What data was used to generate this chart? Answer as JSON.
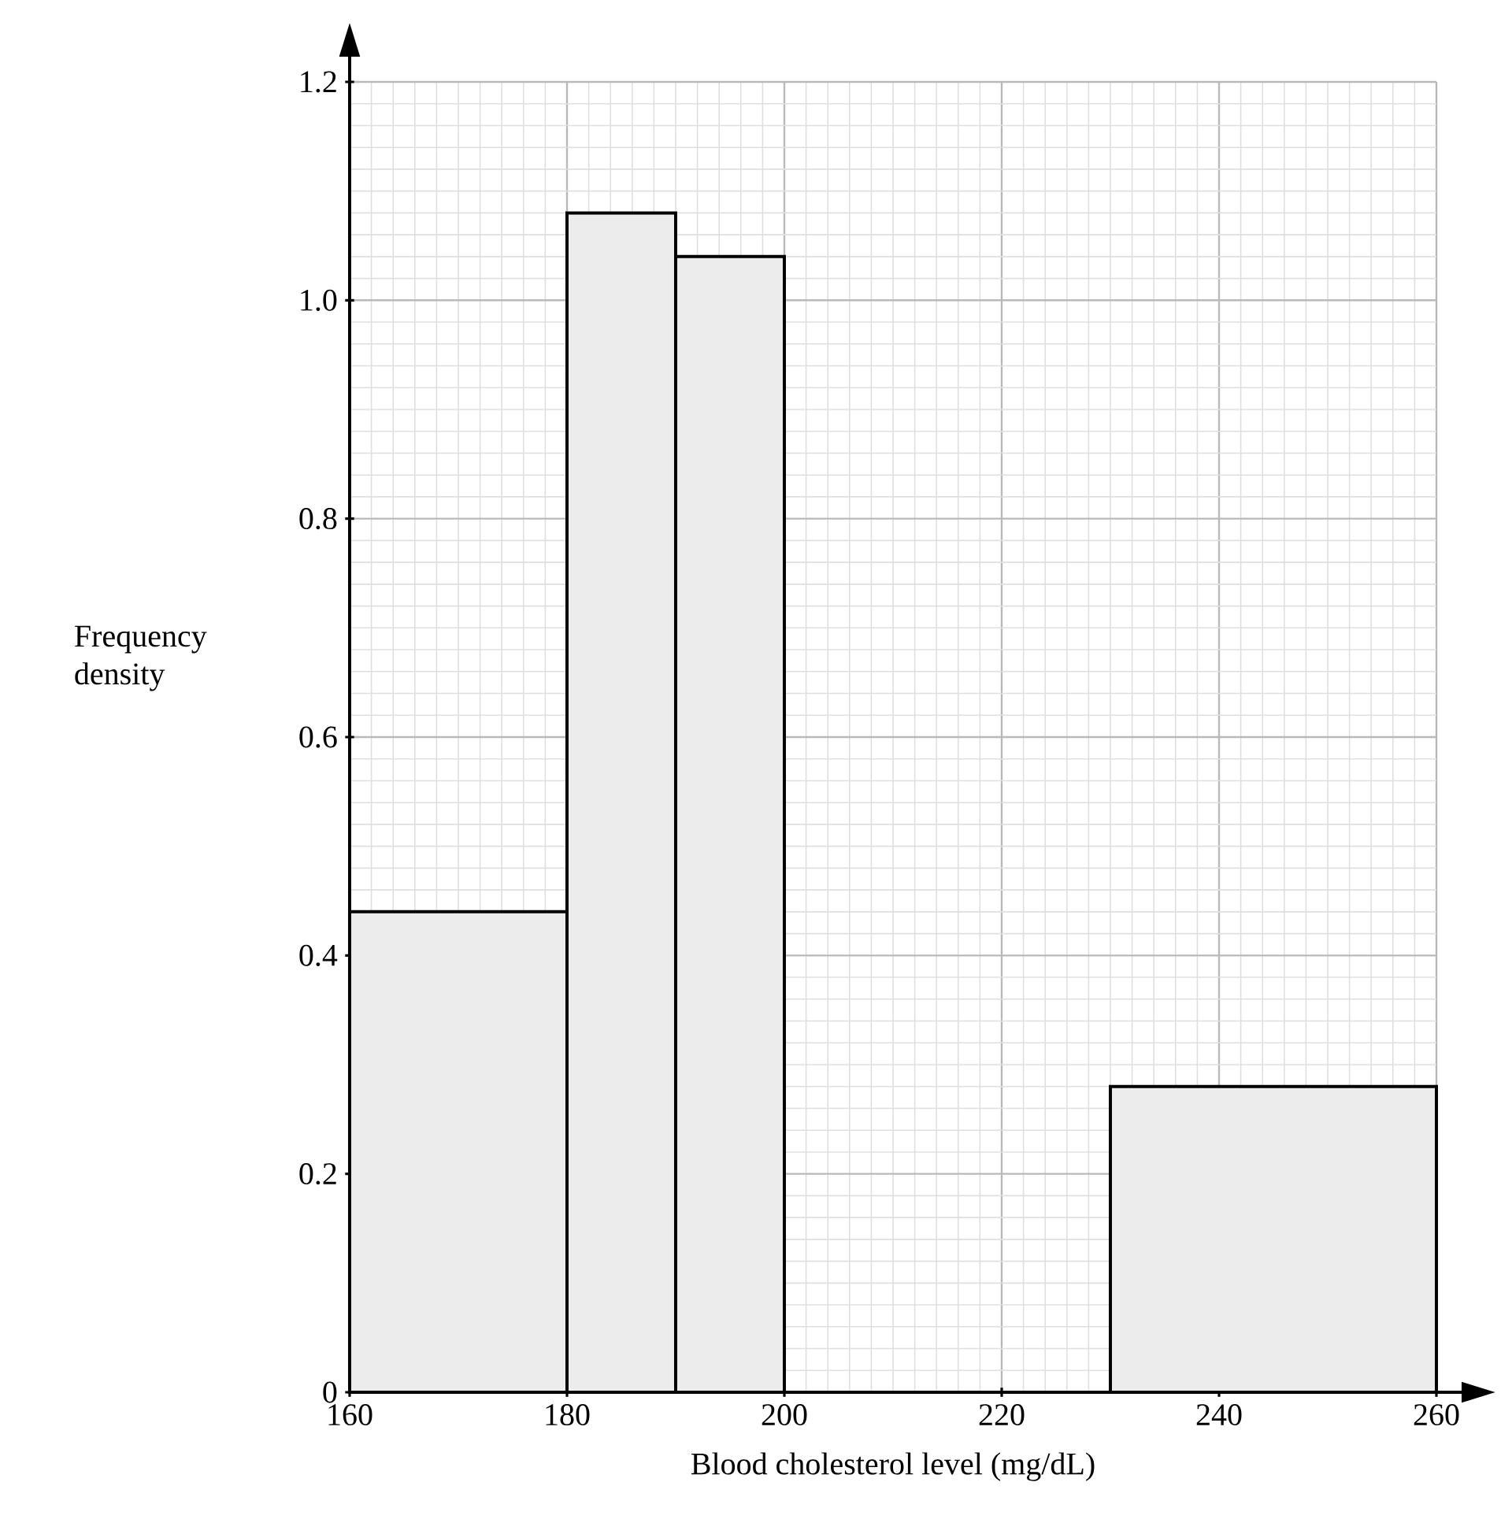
{
  "chart_data": {
    "type": "histogram",
    "xlabel": "Blood cholesterol level (mg/dL)",
    "ylabel": "Frequency density",
    "bins": [
      160,
      180,
      190,
      200,
      230,
      260
    ],
    "values": [
      0.44,
      1.08,
      1.04,
      null,
      0.28
    ],
    "color": "#ececec",
    "xlim": [
      160,
      260
    ],
    "ylim": [
      0,
      1.2
    ],
    "xticks": [
      160,
      180,
      200,
      220,
      240,
      260
    ],
    "yticks": [
      0,
      0.2,
      0.4,
      0.6,
      0.8,
      {
        "value": 1,
        "label": "1.0"
      },
      1.2
    ],
    "grid": true
  }
}
